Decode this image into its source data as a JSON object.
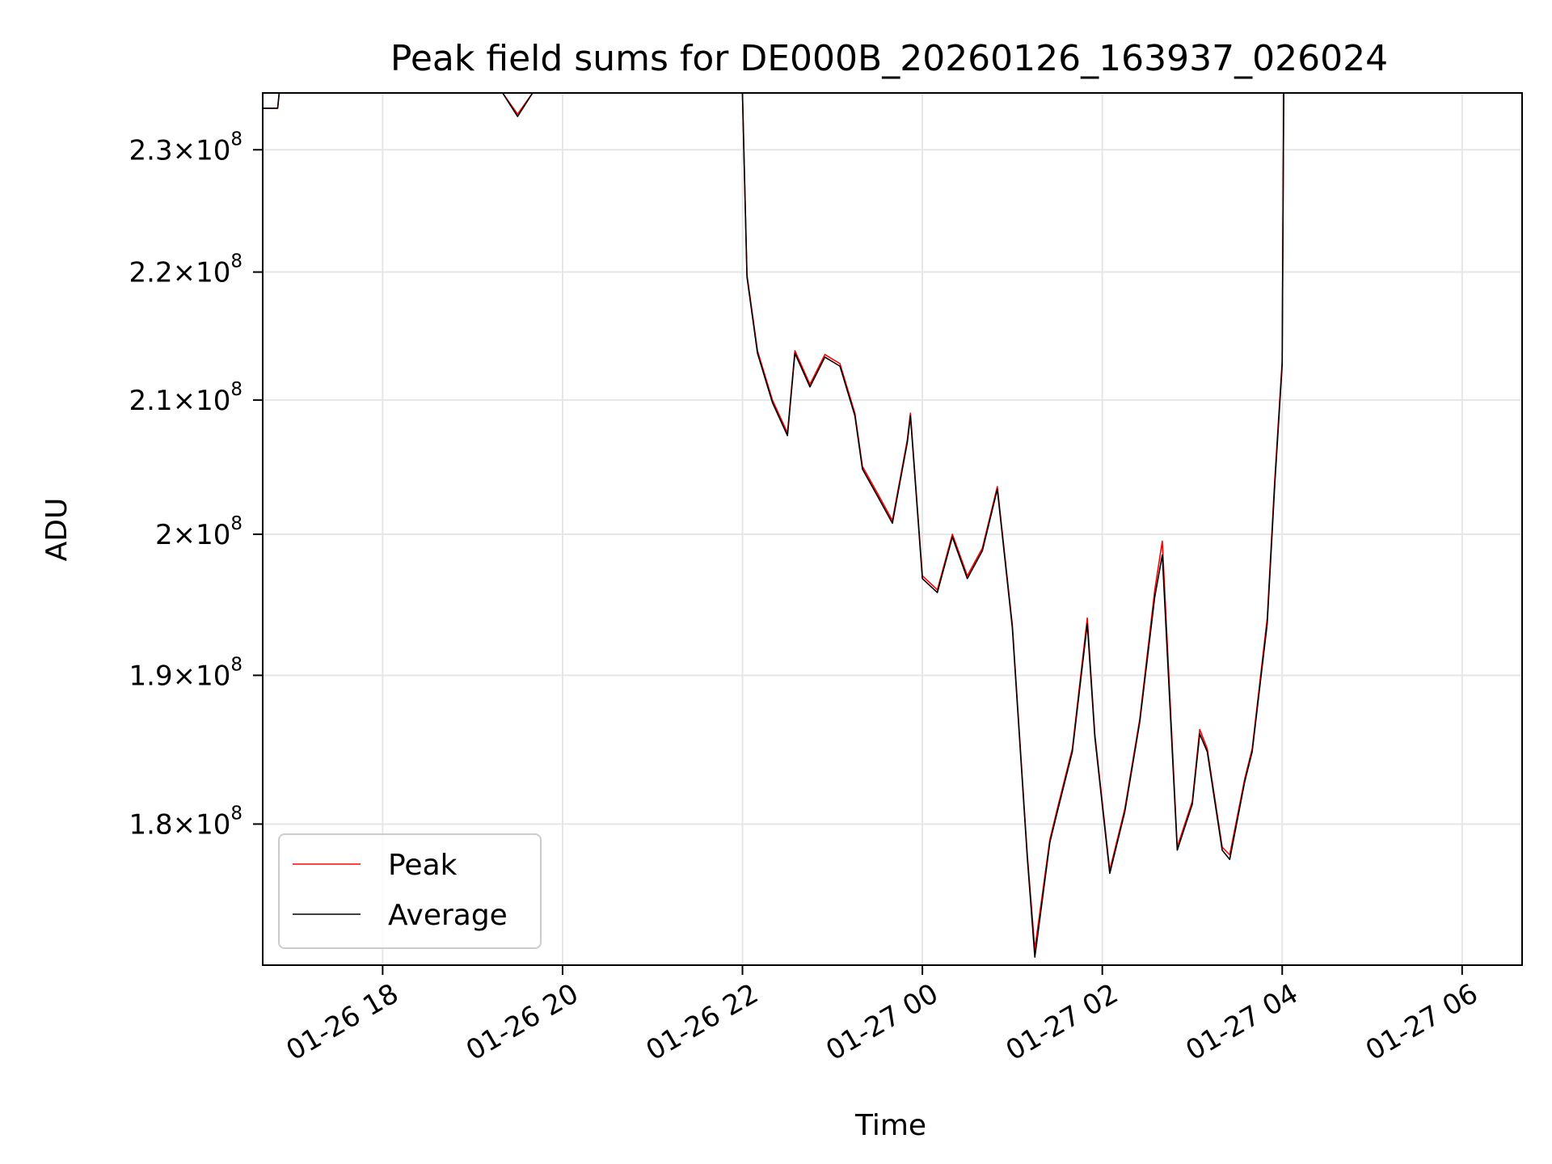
{
  "chart_data": {
    "type": "line",
    "title": "Peak field sums for DE000B_20260126_163937_026024",
    "xlabel": "Time",
    "ylabel": "ADU",
    "y_scale": "log",
    "grid": true,
    "legend_placement": "lower-left",
    "xlim": [
      "2026-01-26 16:40",
      "2026-01-27 06:40"
    ],
    "ylim": [
      171000000,
      234800000
    ],
    "x_ticks": [
      {
        "value": "2026-01-26 18:00",
        "label": "01-26 18"
      },
      {
        "value": "2026-01-26 20:00",
        "label": "01-26 20"
      },
      {
        "value": "2026-01-26 22:00",
        "label": "01-26 22"
      },
      {
        "value": "2026-01-27 00:00",
        "label": "01-27 00"
      },
      {
        "value": "2026-01-27 02:00",
        "label": "01-27 02"
      },
      {
        "value": "2026-01-27 04:00",
        "label": "01-27 04"
      },
      {
        "value": "2026-01-27 06:00",
        "label": "01-27 06"
      }
    ],
    "y_ticks": [
      {
        "value": 180000000,
        "mantissa": "1.8",
        "exponent": "8"
      },
      {
        "value": 190000000,
        "mantissa": "1.9",
        "exponent": "8"
      },
      {
        "value": 200000000,
        "mantissa": "2",
        "exponent": "8"
      },
      {
        "value": 210000000,
        "mantissa": "2.1",
        "exponent": "8"
      },
      {
        "value": 220000000,
        "mantissa": "2.2",
        "exponent": "8"
      },
      {
        "value": 230000000,
        "mantissa": "2.3",
        "exponent": "8"
      }
    ],
    "times_mult": "×10",
    "x": [
      "2026-01-26 16:40",
      "2026-01-26 16:50",
      "2026-01-26 16:51",
      "2026-01-26 17:00",
      "2026-01-26 19:20",
      "2026-01-26 19:30",
      "2026-01-26 19:40",
      "2026-01-26 21:59",
      "2026-01-26 22:00",
      "2026-01-26 22:03",
      "2026-01-26 22:10",
      "2026-01-26 22:20",
      "2026-01-26 22:30",
      "2026-01-26 22:35",
      "2026-01-26 22:45",
      "2026-01-26 22:55",
      "2026-01-26 23:05",
      "2026-01-26 23:15",
      "2026-01-26 23:20",
      "2026-01-26 23:30",
      "2026-01-26 23:40",
      "2026-01-26 23:50",
      "2026-01-26 23:52",
      "2026-01-27 00:00",
      "2026-01-27 00:10",
      "2026-01-27 00:20",
      "2026-01-27 00:30",
      "2026-01-27 00:40",
      "2026-01-27 00:50",
      "2026-01-27 01:00",
      "2026-01-27 01:10",
      "2026-01-27 01:15",
      "2026-01-27 01:25",
      "2026-01-27 01:30",
      "2026-01-27 01:40",
      "2026-01-27 01:50",
      "2026-01-27 01:55",
      "2026-01-27 02:05",
      "2026-01-27 02:15",
      "2026-01-27 02:25",
      "2026-01-27 02:35",
      "2026-01-27 02:40",
      "2026-01-27 02:50",
      "2026-01-27 03:00",
      "2026-01-27 03:05",
      "2026-01-27 03:10",
      "2026-01-27 03:20",
      "2026-01-27 03:25",
      "2026-01-27 03:35",
      "2026-01-27 03:40",
      "2026-01-27 03:50",
      "2026-01-27 03:55",
      "2026-01-27 04:00",
      "2026-01-27 04:01",
      "2026-01-27 06:40"
    ],
    "series": [
      {
        "name": "Peak",
        "color": "#ff0000",
        "values": [
          233500000,
          233500000,
          234800000,
          234800000,
          234800000,
          233000000,
          234800000,
          234800000,
          234800000,
          219800000,
          213800000,
          210000000,
          207500000,
          213800000,
          211200000,
          213500000,
          212800000,
          209000000,
          205000000,
          203000000,
          201000000,
          207000000,
          209000000,
          197000000,
          196000000,
          200000000,
          197000000,
          199000000,
          203500000,
          193500000,
          178000000,
          172000000,
          179000000,
          181000000,
          185000000,
          194000000,
          186000000,
          177000000,
          181000000,
          187000000,
          196000000,
          199500000,
          178500000,
          181500000,
          186300000,
          185000000,
          178500000,
          178000000,
          183000000,
          185000000,
          194000000,
          204000000,
          213000000,
          234800000,
          234800000
        ]
      },
      {
        "name": "Average",
        "color": "#000000",
        "values": [
          233500000,
          233500000,
          234800000,
          234800000,
          234800000,
          232800000,
          234800000,
          234800000,
          234800000,
          219600000,
          213600000,
          209800000,
          207300000,
          213600000,
          211000000,
          213300000,
          212600000,
          208800000,
          204800000,
          202800000,
          200800000,
          206800000,
          208800000,
          196800000,
          195800000,
          199800000,
          196800000,
          198800000,
          203300000,
          193300000,
          177800000,
          171500000,
          178800000,
          180800000,
          184800000,
          193600000,
          185800000,
          176800000,
          180800000,
          186800000,
          195500000,
          198500000,
          178300000,
          181300000,
          186000000,
          184800000,
          178300000,
          177700000,
          182800000,
          184800000,
          193600000,
          203600000,
          212700000,
          234800000,
          234800000
        ]
      }
    ]
  }
}
